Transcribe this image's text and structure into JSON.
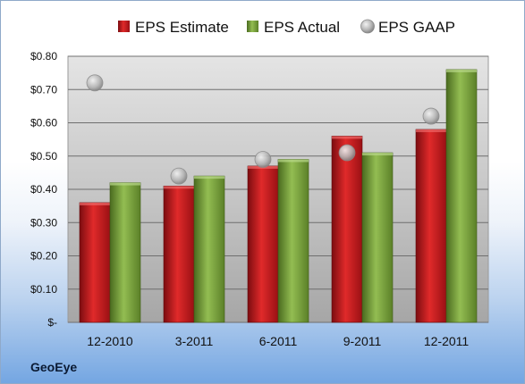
{
  "company": "GeoEye",
  "chart_data": {
    "type": "bar",
    "categories": [
      "12-2010",
      "3-2011",
      "6-2011",
      "9-2011",
      "12-2011"
    ],
    "series": [
      {
        "name": "EPS Estimate",
        "kind": "bar",
        "color": "#c8151b",
        "values": [
          0.36,
          0.41,
          0.47,
          0.56,
          0.58
        ]
      },
      {
        "name": "EPS Actual",
        "kind": "bar",
        "color": "#7aa33a",
        "values": [
          0.42,
          0.44,
          0.49,
          0.51,
          0.76
        ]
      },
      {
        "name": "EPS GAAP",
        "kind": "marker",
        "color": "#a8a8a8",
        "values": [
          0.72,
          0.44,
          0.49,
          0.51,
          0.62
        ]
      }
    ],
    "y_ticks": [
      "$-",
      "$0.10",
      "$0.20",
      "$0.30",
      "$0.40",
      "$0.50",
      "$0.60",
      "$0.70",
      "$0.80"
    ],
    "ylim": [
      0,
      0.8
    ],
    "grid": true,
    "legend_position": "top"
  }
}
